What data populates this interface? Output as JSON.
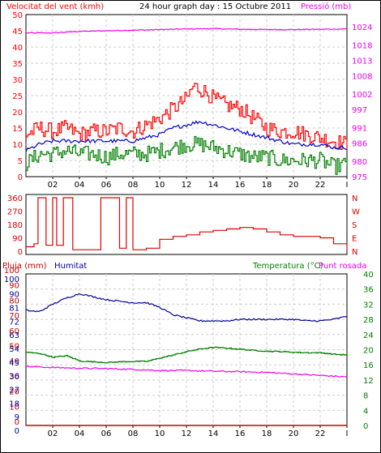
{
  "chart_data": [
    {
      "type": "line",
      "title": "24 hour graph day : 15 Octubre 2011",
      "left_axis_label": "Velocitat del vent (kmh)",
      "right_axis_label": "Pressió (mb)",
      "x_tick_labels": [
        "02",
        "04",
        "06",
        "08",
        "10",
        "12",
        "14",
        "16",
        "18",
        "20",
        "22",
        "I"
      ],
      "x_range_hours": [
        0,
        24
      ],
      "left_ylim": [
        0,
        50
      ],
      "left_ticks": [
        "0",
        "5",
        "10",
        "15",
        "20",
        "25",
        "30",
        "35",
        "40",
        "45",
        "50"
      ],
      "right_ylim": [
        975,
        1028
      ],
      "right_ticks": [
        "975",
        "980",
        "986",
        "991",
        "997",
        "1002",
        "1008",
        "1013",
        "1018",
        "1024"
      ],
      "grid": true,
      "colors": {
        "wind_gust": "#ff0000",
        "wind_avg": "#0000cc",
        "wind_min": "#008000",
        "pressure": "#ee00ee"
      },
      "series": [
        {
          "key": "wind_gust",
          "x": [
            0,
            1,
            2,
            3,
            4,
            5,
            6,
            7,
            8,
            9,
            10,
            11,
            12,
            12.5,
            13,
            13.5,
            14,
            15,
            16,
            17,
            18,
            19,
            20,
            21,
            22,
            23,
            24
          ],
          "values": [
            13,
            15,
            14,
            15,
            13,
            14,
            14,
            15,
            14,
            16,
            18,
            21,
            24,
            28,
            27,
            26,
            24,
            22,
            21,
            18,
            15,
            14,
            14,
            13,
            12,
            11,
            10
          ]
        },
        {
          "key": "wind_avg",
          "x": [
            0,
            1,
            2,
            3,
            4,
            5,
            6,
            7,
            8,
            9,
            10,
            11,
            12,
            13,
            14,
            15,
            16,
            17,
            18,
            19,
            20,
            21,
            22,
            23,
            24
          ],
          "values": [
            8,
            10,
            11,
            11,
            11,
            11,
            11,
            11,
            11,
            12,
            13,
            15,
            16,
            17,
            16,
            15,
            14,
            13,
            12,
            11,
            10,
            10,
            10,
            9,
            9
          ]
        },
        {
          "key": "wind_min",
          "x": [
            0,
            1,
            2,
            3,
            4,
            5,
            6,
            7,
            8,
            9,
            10,
            11,
            12,
            13,
            14,
            15,
            16,
            17,
            18,
            19,
            20,
            21,
            22,
            23,
            24
          ],
          "values": [
            4,
            7,
            7,
            8,
            7,
            7,
            6,
            7,
            7,
            7,
            8,
            9,
            10,
            10,
            9,
            8,
            7,
            6,
            6,
            5,
            5,
            5,
            5,
            3,
            4
          ]
        },
        {
          "key": "pressure",
          "x": [
            0,
            2,
            4,
            6,
            8,
            10,
            12,
            14,
            16,
            18,
            20,
            22,
            24
          ],
          "values": [
            1022,
            1022,
            1022.5,
            1022.7,
            1022.9,
            1023.1,
            1023.3,
            1023.4,
            1023.2,
            1023.1,
            1023.1,
            1023.2,
            1023.3
          ]
        }
      ]
    },
    {
      "type": "line",
      "right_axis_letters": [
        "N",
        "W",
        "S",
        "E",
        "N"
      ],
      "left_ylim": [
        0,
        360
      ],
      "left_ticks": [
        "0",
        "90",
        "180",
        "270",
        "360"
      ],
      "color": "#dd0000",
      "series": [
        {
          "key": "wind_direction",
          "x": [
            0,
            0.6,
            0.9,
            1.5,
            2,
            2.3,
            2.8,
            3.5,
            4,
            5,
            5.6,
            6.2,
            7,
            7.5,
            8,
            9,
            10,
            11,
            12,
            13,
            14,
            15,
            16,
            17,
            18,
            19,
            20,
            21,
            22,
            23,
            24
          ],
          "values": [
            30,
            50,
            360,
            40,
            360,
            40,
            360,
            10,
            10,
            10,
            360,
            360,
            20,
            360,
            10,
            20,
            80,
            100,
            110,
            130,
            140,
            150,
            160,
            150,
            130,
            110,
            100,
            100,
            90,
            50,
            5
          ]
        }
      ]
    },
    {
      "type": "line",
      "left_axis_label": "Pluja (mm)",
      "humidity_label": "Humitat",
      "right_axis_label": "Temperatura (°C)",
      "dewpoint_label": "Punt rosada",
      "left_ylim": [
        0,
        100
      ],
      "left_ticks": [
        "0",
        "10",
        "20",
        "30",
        "40",
        "50",
        "60",
        "70",
        "80",
        "90",
        "100"
      ],
      "humidity_ticks": [
        "0",
        "9",
        "18",
        "27",
        "36",
        "45",
        "54",
        "63",
        "72",
        "81",
        "90",
        "100"
      ],
      "right_ylim": [
        0,
        40
      ],
      "right_ticks": [
        "0",
        "4",
        "8",
        "12",
        "16",
        "20",
        "24",
        "28",
        "32",
        "36",
        "40"
      ],
      "grid": true,
      "colors": {
        "rain": "#cc0000",
        "humidity": "#000099",
        "temperature": "#008000",
        "dewpoint": "#ee00ee"
      },
      "series": [
        {
          "key": "rain",
          "x": [
            0,
            24
          ],
          "values": [
            0,
            0
          ]
        },
        {
          "key": "humidity",
          "x": [
            0,
            1,
            2,
            3,
            4,
            5,
            6,
            7,
            8,
            9,
            10,
            11,
            12,
            13,
            14,
            15,
            16,
            17,
            18,
            19,
            20,
            21,
            22,
            23,
            24
          ],
          "values": [
            76,
            75,
            80,
            84,
            87,
            85,
            83,
            82,
            81,
            81,
            78,
            73,
            71,
            69,
            69,
            69,
            70,
            70,
            70,
            70,
            70,
            69,
            69,
            70,
            72
          ]
        },
        {
          "key": "temperature",
          "x": [
            0,
            1,
            2,
            3,
            4,
            5,
            6,
            7,
            8,
            9,
            10,
            11,
            12,
            13,
            14,
            15,
            16,
            17,
            18,
            19,
            20,
            21,
            22,
            23,
            24
          ],
          "values": [
            19.3,
            19.0,
            18.0,
            18.4,
            17.0,
            16.8,
            16.6,
            16.8,
            16.9,
            16.9,
            17.8,
            18.6,
            19.5,
            20.2,
            20.6,
            20.4,
            20.1,
            19.8,
            19.6,
            19.5,
            19.3,
            19.2,
            19.2,
            18.8,
            18.6
          ]
        },
        {
          "key": "dewpoint",
          "x": [
            0,
            2,
            4,
            6,
            8,
            10,
            12,
            14,
            16,
            18,
            20,
            22,
            24
          ],
          "values": [
            15.6,
            15.3,
            15.1,
            15.0,
            14.8,
            14.5,
            14.5,
            14.3,
            14.2,
            14.0,
            13.6,
            13.2,
            12.8
          ]
        }
      ]
    }
  ]
}
